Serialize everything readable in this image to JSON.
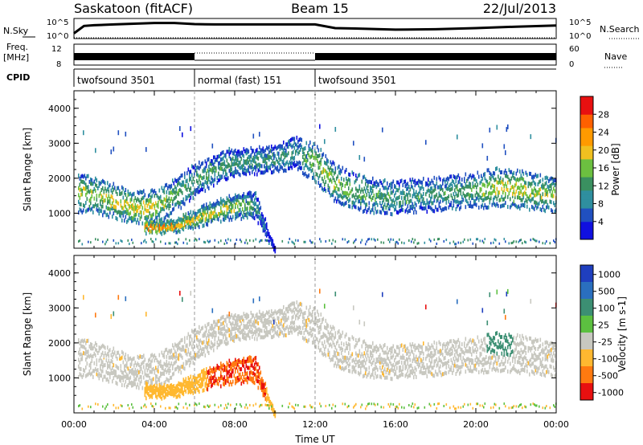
{
  "header": {
    "site": "Saskatoon (fitACF)",
    "beam": "Beam 15",
    "date": "22/Jul/2013"
  },
  "chart_data": [
    {
      "type": "line",
      "panel": "noise",
      "left_label": "N.Sky",
      "right_label": "N.Search",
      "ytick_labels": [
        "10^5",
        "10^0"
      ],
      "ylim_log": [
        0,
        5
      ],
      "description": "Sky noise (solid) and search noise (dotted) versus time",
      "series": [
        {
          "name": "N.Sky",
          "style": "solid",
          "x": [
            0,
            0.5,
            1,
            2,
            3,
            4,
            5,
            6,
            7,
            8,
            9,
            10,
            11,
            12,
            13,
            14,
            16,
            18,
            20,
            22,
            24
          ],
          "y": [
            1.2,
            3.2,
            3.4,
            3.6,
            3.8,
            4.0,
            4.0,
            3.7,
            3.6,
            3.6,
            3.6,
            3.6,
            3.6,
            3.6,
            2.6,
            2.5,
            2.2,
            2.3,
            2.6,
            3.0,
            3.3
          ]
        },
        {
          "name": "N.Search",
          "style": "dotted",
          "x": [
            0,
            6,
            12,
            18,
            24
          ],
          "y": [
            0,
            0,
            0,
            0,
            0
          ]
        }
      ]
    },
    {
      "type": "line",
      "panel": "frequency",
      "left_label": "Freq.",
      "left_unit": "[MHz]",
      "ytick_labels_left": [
        "12",
        "8"
      ],
      "ytick_labels_right": [
        "60",
        "0"
      ],
      "right_label": "Nave",
      "description": "Transmit frequency band (solid) and number of averages (dotted) versus time",
      "segments": [
        {
          "x0": 0,
          "x1": 6.0,
          "style": "solid"
        },
        {
          "x0": 6.0,
          "x1": 12.0,
          "style": "dotted"
        },
        {
          "x0": 12.0,
          "x1": 24,
          "style": "solid"
        }
      ]
    },
    {
      "type": "table",
      "panel": "cpid",
      "label": "CPID",
      "modes": [
        {
          "x0": 0,
          "x1": 6.0,
          "name": "twofsound 3501"
        },
        {
          "x0": 6.0,
          "x1": 12.0,
          "name": "normal (fast) 151"
        },
        {
          "x0": 12.0,
          "x1": 24,
          "name": "twofsound 3501"
        }
      ]
    },
    {
      "type": "heatmap",
      "panel": "power",
      "ylabel": "Slant Range [km]",
      "ylim": [
        0,
        4500
      ],
      "yticks": [
        1000,
        2000,
        3000,
        4000
      ],
      "xlim": [
        0,
        24
      ],
      "colorbar": {
        "label": "Power [dB]",
        "ticks": [
          4,
          8,
          12,
          16,
          20,
          24,
          28
        ],
        "range": [
          0,
          32
        ]
      },
      "scatter_bands": [
        {
          "x": [
            0,
            1,
            2,
            3,
            4,
            5,
            6,
            7,
            8,
            9,
            10,
            11,
            12,
            13,
            14,
            15,
            16,
            17,
            18,
            19,
            20,
            21,
            22,
            23,
            24
          ],
          "center_km": [
            1650,
            1550,
            1400,
            1200,
            1250,
            1550,
            2000,
            2300,
            2500,
            2550,
            2600,
            2800,
            2500,
            1900,
            1650,
            1550,
            1500,
            1550,
            1600,
            1650,
            1700,
            1800,
            1750,
            1650,
            1600
          ],
          "halfwidth_km": [
            300,
            280,
            260,
            240,
            250,
            260,
            250,
            220,
            200,
            200,
            200,
            250,
            300,
            300,
            280,
            260,
            250,
            250,
            250,
            260,
            280,
            300,
            300,
            280,
            260
          ],
          "db": [
            18,
            18,
            20,
            22,
            20,
            16,
            14,
            14,
            13,
            13,
            13,
            12,
            18,
            18,
            16,
            14,
            13,
            13,
            13,
            14,
            16,
            20,
            20,
            18,
            18
          ]
        },
        {
          "x": [
            3.5,
            4,
            5,
            6,
            7,
            8,
            9,
            10
          ],
          "center_km": [
            700,
            650,
            700,
            900,
            1100,
            1250,
            1300,
            0
          ],
          "halfwidth_km": [
            100,
            80,
            80,
            120,
            150,
            180,
            200,
            0
          ],
          "db": [
            26,
            28,
            26,
            22,
            20,
            18,
            14,
            0
          ]
        }
      ]
    },
    {
      "type": "heatmap",
      "panel": "velocity",
      "ylabel": "Slant Range [km]",
      "ylim": [
        0,
        4500
      ],
      "yticks": [
        1000,
        2000,
        3000,
        4000
      ],
      "xlim": [
        0,
        24
      ],
      "xticks": [
        "00:00",
        "04:00",
        "08:00",
        "12:00",
        "16:00",
        "20:00",
        "00:00"
      ],
      "xtick_hours": [
        0,
        4,
        8,
        12,
        16,
        20,
        24
      ],
      "xlabel": "Time UT",
      "colorbar": {
        "label": "Velocity [m s-1]",
        "ticks": [
          "1000",
          "500",
          "100",
          "25",
          "-25",
          "-100",
          "-500",
          "-1000"
        ],
        "colors": [
          "#1f3fbf",
          "#2a6fbf",
          "#3c8f73",
          "#5cc040",
          "#c8c8c0",
          "#ffb830",
          "#ff7a10",
          "#e81010"
        ]
      },
      "notes": "Ground scatter shown grey along main band; -100 to -500 m/s (orange/red) feature 07:00-09:30 near 1000-1500 km; positive (green) patch near 21:00 at 1700-2600 km"
    }
  ]
}
